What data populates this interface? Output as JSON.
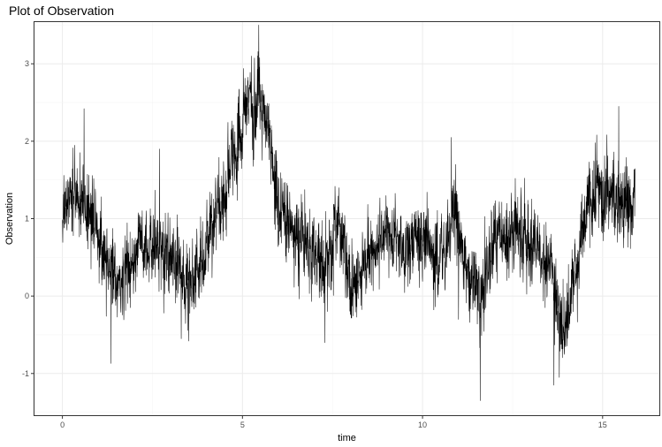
{
  "chart_data": {
    "type": "line",
    "title": "Plot of Observation",
    "xlabel": "time",
    "ylabel": "Observation",
    "xlim": [
      -0.8,
      16.6
    ],
    "ylim": [
      -1.55,
      3.55
    ],
    "x_ticks": [
      0,
      5,
      10,
      15
    ],
    "y_ticks": [
      -1,
      0,
      1,
      2,
      3
    ],
    "x_tick_labels": [
      "0",
      "5",
      "10",
      "15"
    ],
    "y_tick_labels": [
      "-1",
      "0",
      "1",
      "2",
      "3"
    ],
    "grid": true,
    "legend": "none",
    "line_color": "#000000",
    "series": [
      {
        "x_range": [
          0,
          15.9
        ],
        "trend": {
          "x": [
            0,
            0.3,
            0.8,
            1.2,
            1.6,
            2.2,
            2.8,
            3.5,
            3.8,
            4.3,
            4.8,
            5.2,
            5.4,
            5.7,
            6.0,
            6.3,
            6.8,
            7.2,
            7.7,
            8.1,
            8.5,
            9.0,
            9.5,
            10.0,
            10.5,
            10.9,
            11.3,
            11.7,
            12.1,
            12.6,
            13.1,
            13.5,
            13.9,
            14.2,
            14.6,
            15.0,
            15.5,
            15.9
          ],
          "y": [
            1.1,
            1.3,
            1.1,
            0.5,
            0.2,
            0.7,
            0.6,
            0.2,
            0.4,
            1.1,
            1.8,
            2.5,
            2.6,
            2.2,
            1.2,
            0.9,
            0.6,
            0.5,
            0.8,
            0.1,
            0.5,
            0.8,
            0.6,
            0.7,
            0.5,
            1.0,
            0.3,
            0.1,
            0.8,
            0.9,
            0.6,
            0.4,
            -0.4,
            0.2,
            1.2,
            1.3,
            1.2,
            1.2
          ]
        },
        "extremes": {
          "x": [
            0.6,
            1.35,
            2.7,
            3.3,
            5.25,
            5.45,
            10.8,
            11.0,
            11.6,
            13.65,
            13.8,
            15.45
          ],
          "y": [
            2.42,
            -0.87,
            1.9,
            -0.55,
            3.1,
            3.5,
            2.05,
            -0.3,
            -1.35,
            -1.15,
            -1.05,
            2.45
          ]
        }
      }
    ]
  }
}
